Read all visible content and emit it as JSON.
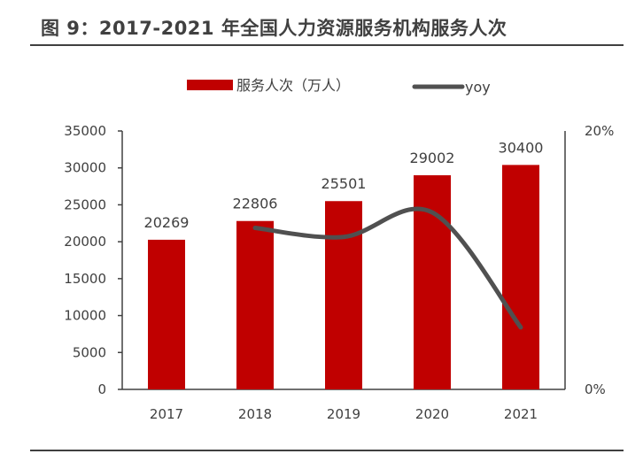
{
  "title": "图 9：2017-2021 年全国人力资源服务机构服务人次",
  "chart_data": {
    "type": "bar",
    "title": "图 9：2017-2021 年全国人力资源服务机构服务人次",
    "categories": [
      "2017",
      "2018",
      "2019",
      "2020",
      "2021"
    ],
    "series": [
      {
        "name": "服务人次（万人）",
        "type": "bar",
        "axis": "left",
        "color": "#C00000",
        "values": [
          20269,
          22806,
          25501,
          29002,
          30400
        ],
        "data_labels": [
          "20269",
          "22806",
          "25501",
          "29002",
          "30400"
        ]
      },
      {
        "name": "yoy",
        "type": "line",
        "axis": "right",
        "color": "#505050",
        "values": [
          null,
          12.5,
          11.8,
          13.7,
          4.8
        ]
      }
    ],
    "y_left": {
      "min": 0,
      "max": 35000,
      "ticks": [
        "0",
        "5000",
        "10000",
        "15000",
        "20000",
        "25000",
        "30000",
        "35000"
      ]
    },
    "y_right": {
      "min": 0,
      "max": 20,
      "ticks": [
        "0%",
        "20%"
      ]
    },
    "legend": "top-center",
    "grid": false
  }
}
